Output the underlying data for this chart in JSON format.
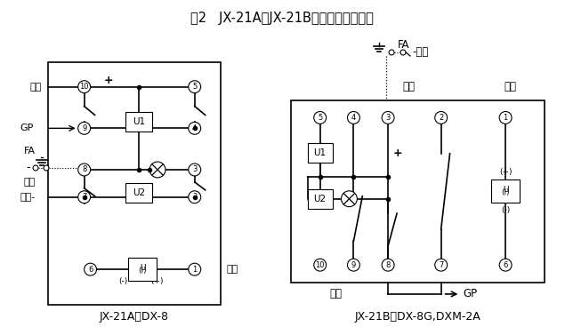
{
  "title": "图2   JX-21A、JX-21B接线图（正视图）",
  "bg_color": "#ffffff",
  "line_color": "#000000",
  "label_a": "JX-21A代DX-8",
  "label_b": "JX-21B代DX-8G,DXM-2A"
}
